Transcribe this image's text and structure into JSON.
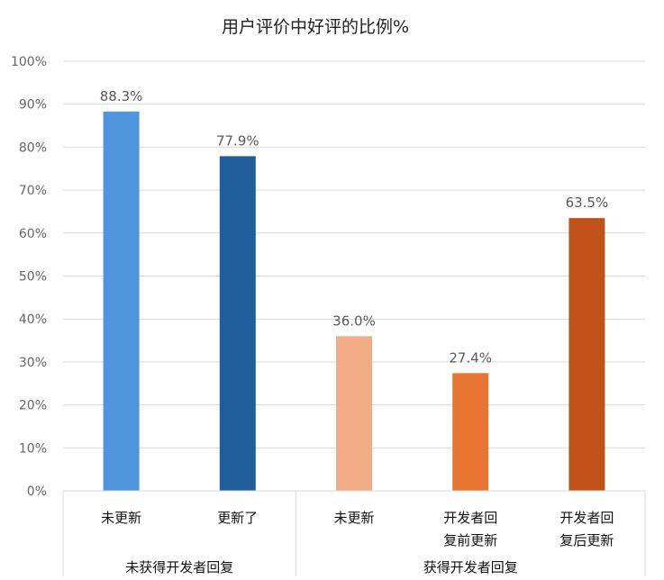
{
  "chart_data": {
    "type": "bar",
    "title": "用户评价中好评的比例%",
    "ylim": [
      0,
      100
    ],
    "yticks": [
      "0%",
      "10%",
      "20%",
      "30%",
      "40%",
      "50%",
      "60%",
      "70%",
      "80%",
      "90%",
      "100%"
    ],
    "grid": true,
    "legend": "none",
    "groups": [
      {
        "label": "未获得开发者回复",
        "categories": [
          [
            "未更新"
          ],
          [
            "更新了"
          ]
        ]
      },
      {
        "label": "获得开发者回复",
        "categories": [
          [
            "未更新"
          ],
          [
            "开发者回",
            "复前更新"
          ],
          [
            "开发者回",
            "复后更新"
          ]
        ]
      }
    ],
    "values": [
      88.3,
      77.9,
      36.0,
      27.4,
      63.5
    ],
    "data_labels": [
      "88.3%",
      "77.9%",
      "36.0%",
      "27.4%",
      "63.5%"
    ],
    "colors": [
      "#4f95dc",
      "#1f5d9b",
      "#f2ad86",
      "#e87432",
      "#c0521a"
    ]
  }
}
